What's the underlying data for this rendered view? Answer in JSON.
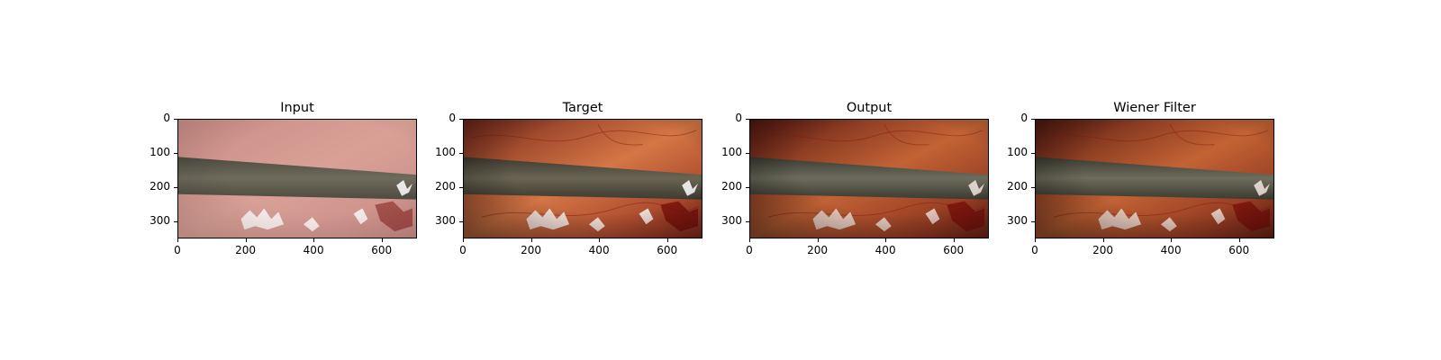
{
  "panels": [
    {
      "title": "Input",
      "variant": "input",
      "colors": {
        "top": "#c98c86",
        "mid": "#d9a196",
        "bottom": "#c88a86",
        "rod": "#6f6b5c",
        "rod_dark": "#4d4a40",
        "glare": "#ffffff"
      }
    },
    {
      "title": "Target",
      "variant": "target",
      "colors": {
        "top": "#7a2a1c",
        "mid": "#d47645",
        "bottom": "#8d2c1d",
        "rod": "#6a6553",
        "rod_dark": "#3d3a30",
        "glare": "#ffffff"
      }
    },
    {
      "title": "Output",
      "variant": "output",
      "colors": {
        "top": "#5d1a12",
        "mid": "#c26335",
        "bottom": "#7a2517",
        "rod": "#6d6c5c",
        "rod_dark": "#3a3a32",
        "glare": "#f3e6e0"
      }
    },
    {
      "title": "Wiener Filter",
      "variant": "wiener",
      "colors": {
        "top": "#5a1b12",
        "mid": "#c36334",
        "bottom": "#772417",
        "rod": "#6e6c5b",
        "rod_dark": "#3a3a31",
        "glare": "#f3e6e0"
      }
    }
  ],
  "axes": {
    "y_ticks": [
      "0",
      "100",
      "200",
      "300"
    ],
    "x_ticks": [
      "0",
      "200",
      "400",
      "600"
    ]
  }
}
